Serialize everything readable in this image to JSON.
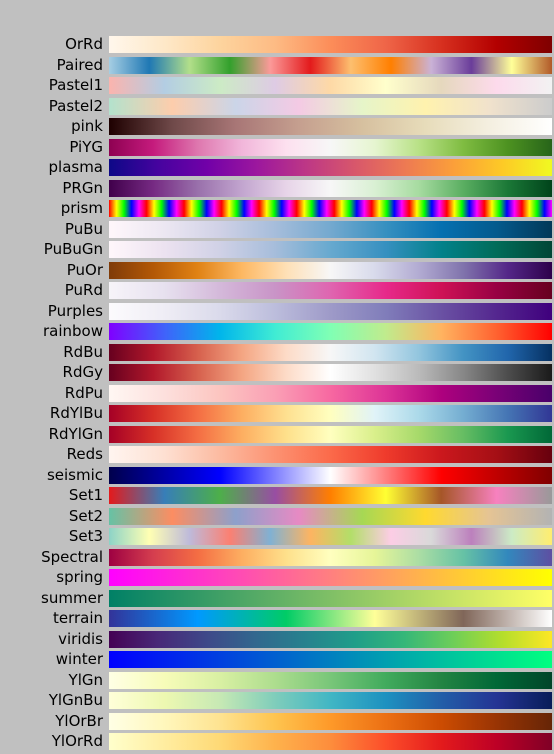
{
  "chart_data": {
    "type": "colormap-table",
    "title": "",
    "background": "#c0c0c0",
    "colormaps": [
      {
        "name": "OrRd",
        "stops": [
          "#fff7ec",
          "#fee8c8",
          "#fdd49e",
          "#fdbb84",
          "#fc8d59",
          "#ef6548",
          "#d7301f",
          "#b30000",
          "#7f0000"
        ],
        "mode": "smooth"
      },
      {
        "name": "Paired",
        "stops": [
          "#a6cee3",
          "#1f78b4",
          "#b2df8a",
          "#33a02c",
          "#fb9a99",
          "#e31a1c",
          "#fdbf6f",
          "#ff7f00",
          "#cab2d6",
          "#6a3d9a",
          "#ffff99",
          "#b15928"
        ],
        "mode": "smooth"
      },
      {
        "name": "Pastel1",
        "stops": [
          "#fbb4ae",
          "#b3cde3",
          "#ccebc5",
          "#decbe4",
          "#fed9a6",
          "#ffffcc",
          "#e5d8bd",
          "#fddaec",
          "#f2f2f2"
        ],
        "mode": "smooth"
      },
      {
        "name": "Pastel2",
        "stops": [
          "#b3e2cd",
          "#fdcdac",
          "#cbd5e8",
          "#f4cae4",
          "#e6f5c9",
          "#fff2ae",
          "#f1e2cc",
          "#cccccc"
        ],
        "mode": "smooth"
      },
      {
        "name": "pink",
        "stops": [
          "#1e0000",
          "#6f4949",
          "#a87676",
          "#c59f8f",
          "#d6c09f",
          "#e7dcba",
          "#f4efe0",
          "#ffffff"
        ],
        "mode": "smooth"
      },
      {
        "name": "PiYG",
        "stops": [
          "#8e0152",
          "#c51b7d",
          "#de77ae",
          "#f1b6da",
          "#fde0ef",
          "#f7f7f7",
          "#e6f5d0",
          "#b8e186",
          "#7fbc41",
          "#4d9221",
          "#276419"
        ],
        "mode": "smooth"
      },
      {
        "name": "plasma",
        "stops": [
          "#0d0887",
          "#46039f",
          "#7201a8",
          "#9c179e",
          "#bd3786",
          "#d8576b",
          "#ed7953",
          "#fb9f3a",
          "#fdca26",
          "#f0f921"
        ],
        "mode": "smooth"
      },
      {
        "name": "PRGn",
        "stops": [
          "#40004b",
          "#762a83",
          "#9970ab",
          "#c2a5cf",
          "#e7d4e8",
          "#f7f7f7",
          "#d9f0d3",
          "#a6dba0",
          "#5aae61",
          "#1b7837",
          "#00441b"
        ],
        "mode": "smooth"
      },
      {
        "name": "prism",
        "stops": [
          "#ff0000",
          "#ffff00",
          "#00ff00",
          "#0000ff",
          "#ff00ff"
        ],
        "mode": "repeat",
        "repeat_count": 12
      },
      {
        "name": "PuBu",
        "stops": [
          "#fff7fb",
          "#ece7f2",
          "#d0d1e6",
          "#a6bddb",
          "#74a9cf",
          "#3690c0",
          "#0570b0",
          "#045a8d",
          "#023858"
        ],
        "mode": "smooth"
      },
      {
        "name": "PuBuGn",
        "stops": [
          "#fff7fb",
          "#ece2f0",
          "#d0d1e6",
          "#a6bddb",
          "#67a9cf",
          "#3690c0",
          "#02818a",
          "#016c59",
          "#014636"
        ],
        "mode": "smooth"
      },
      {
        "name": "PuOr",
        "stops": [
          "#7f3b08",
          "#b35806",
          "#e08214",
          "#fdb863",
          "#fee0b6",
          "#f7f7f7",
          "#d8daeb",
          "#b2abd2",
          "#8073ac",
          "#542788",
          "#2d004b"
        ],
        "mode": "smooth"
      },
      {
        "name": "PuRd",
        "stops": [
          "#f7f4f9",
          "#e7e1ef",
          "#d4b9da",
          "#c994c7",
          "#df65b0",
          "#e7298a",
          "#ce1256",
          "#980043",
          "#67001f"
        ],
        "mode": "smooth"
      },
      {
        "name": "Purples",
        "stops": [
          "#fcfbfd",
          "#efedf5",
          "#dadaeb",
          "#bcbddc",
          "#9e9ac8",
          "#807dba",
          "#6a51a3",
          "#54278f",
          "#3f007d"
        ],
        "mode": "smooth"
      },
      {
        "name": "rainbow",
        "stops": [
          "#8000ff",
          "#4062fa",
          "#00b5eb",
          "#40ecd4",
          "#80ffb4",
          "#c0eb8d",
          "#ffb360",
          "#ff6230",
          "#ff0000"
        ],
        "mode": "smooth"
      },
      {
        "name": "RdBu",
        "stops": [
          "#67001f",
          "#b2182b",
          "#d6604d",
          "#f4a582",
          "#fddbc7",
          "#f7f7f7",
          "#d1e5f0",
          "#92c5de",
          "#4393c3",
          "#2166ac",
          "#053061"
        ],
        "mode": "smooth"
      },
      {
        "name": "RdGy",
        "stops": [
          "#67001f",
          "#b2182b",
          "#d6604d",
          "#f4a582",
          "#fddbc7",
          "#ffffff",
          "#e0e0e0",
          "#bababa",
          "#878787",
          "#4d4d4d",
          "#1a1a1a"
        ],
        "mode": "smooth"
      },
      {
        "name": "RdPu",
        "stops": [
          "#fff7f3",
          "#fde0dd",
          "#fcc5c0",
          "#fa9fb5",
          "#f768a1",
          "#dd3497",
          "#ae017e",
          "#7a0177",
          "#49006a"
        ],
        "mode": "smooth"
      },
      {
        "name": "RdYlBu",
        "stops": [
          "#a50026",
          "#d73027",
          "#f46d43",
          "#fdae61",
          "#fee090",
          "#ffffbf",
          "#e0f3f8",
          "#abd9e9",
          "#74add1",
          "#4575b4",
          "#313695"
        ],
        "mode": "smooth"
      },
      {
        "name": "RdYlGn",
        "stops": [
          "#a50026",
          "#d73027",
          "#f46d43",
          "#fdae61",
          "#fee08b",
          "#ffffbf",
          "#d9ef8b",
          "#a6d96a",
          "#66bd63",
          "#1a9850",
          "#006837"
        ],
        "mode": "smooth"
      },
      {
        "name": "Reds",
        "stops": [
          "#fff5f0",
          "#fee0d2",
          "#fcbba1",
          "#fc9272",
          "#fb6a4a",
          "#ef3b2c",
          "#cb181d",
          "#a50f15",
          "#67000d"
        ],
        "mode": "smooth"
      },
      {
        "name": "seismic",
        "stops": [
          "#00004c",
          "#0000ff",
          "#ffffff",
          "#ff0000",
          "#800000"
        ],
        "mode": "smooth"
      },
      {
        "name": "Set1",
        "stops": [
          "#e41a1c",
          "#377eb8",
          "#4daf4a",
          "#984ea3",
          "#ff7f00",
          "#ffff33",
          "#a65628",
          "#f781bf",
          "#999999"
        ],
        "mode": "smooth"
      },
      {
        "name": "Set2",
        "stops": [
          "#66c2a5",
          "#fc8d62",
          "#8da0cb",
          "#e78ac3",
          "#a6d854",
          "#ffd92f",
          "#e5c494",
          "#b3b3b3"
        ],
        "mode": "smooth"
      },
      {
        "name": "Set3",
        "stops": [
          "#8dd3c7",
          "#ffffb3",
          "#bebada",
          "#fb8072",
          "#80b1d3",
          "#fdb462",
          "#b3de69",
          "#fccde5",
          "#d9d9d9",
          "#bc80bd",
          "#ccebc5",
          "#ffed6f"
        ],
        "mode": "smooth"
      },
      {
        "name": "Spectral",
        "stops": [
          "#9e0142",
          "#d53e4f",
          "#f46d43",
          "#fdae61",
          "#fee08b",
          "#ffffbf",
          "#e6f598",
          "#abdda4",
          "#66c2a5",
          "#3288bd",
          "#5e4fa2"
        ],
        "mode": "smooth"
      },
      {
        "name": "spring",
        "stops": [
          "#ff00ff",
          "#ffff00"
        ],
        "mode": "smooth"
      },
      {
        "name": "summer",
        "stops": [
          "#008066",
          "#ffff66"
        ],
        "mode": "smooth"
      },
      {
        "name": "terrain",
        "stops": [
          "#333399",
          "#0099ff",
          "#00cc66",
          "#ffff99",
          "#806659",
          "#ffffff"
        ],
        "mode": "smooth"
      },
      {
        "name": "viridis",
        "stops": [
          "#440154",
          "#482878",
          "#3e4989",
          "#31688e",
          "#26828e",
          "#1f9e89",
          "#35b779",
          "#6ece58",
          "#b5de2b",
          "#fde725"
        ],
        "mode": "smooth"
      },
      {
        "name": "winter",
        "stops": [
          "#0000ff",
          "#00ff80"
        ],
        "mode": "smooth"
      },
      {
        "name": "YlGn",
        "stops": [
          "#ffffe5",
          "#f7fcb9",
          "#d9f0a3",
          "#addd8e",
          "#78c679",
          "#41ab5d",
          "#238443",
          "#006837",
          "#004529"
        ],
        "mode": "smooth"
      },
      {
        "name": "YlGnBu",
        "stops": [
          "#ffffd9",
          "#edf8b1",
          "#c7e9b4",
          "#7fcdbb",
          "#41b6c4",
          "#1d91c0",
          "#225ea8",
          "#253494",
          "#081d58"
        ],
        "mode": "smooth"
      },
      {
        "name": "YlOrBr",
        "stops": [
          "#ffffe5",
          "#fff7bc",
          "#fee391",
          "#fec44f",
          "#fe9929",
          "#ec7014",
          "#cc4c02",
          "#993404",
          "#662506"
        ],
        "mode": "smooth"
      },
      {
        "name": "YlOrRd",
        "stops": [
          "#ffffcc",
          "#ffeda0",
          "#fed976",
          "#feb24c",
          "#fd8d3c",
          "#fc4e2a",
          "#e31a1c",
          "#bd0026",
          "#800026"
        ],
        "mode": "smooth"
      }
    ]
  }
}
